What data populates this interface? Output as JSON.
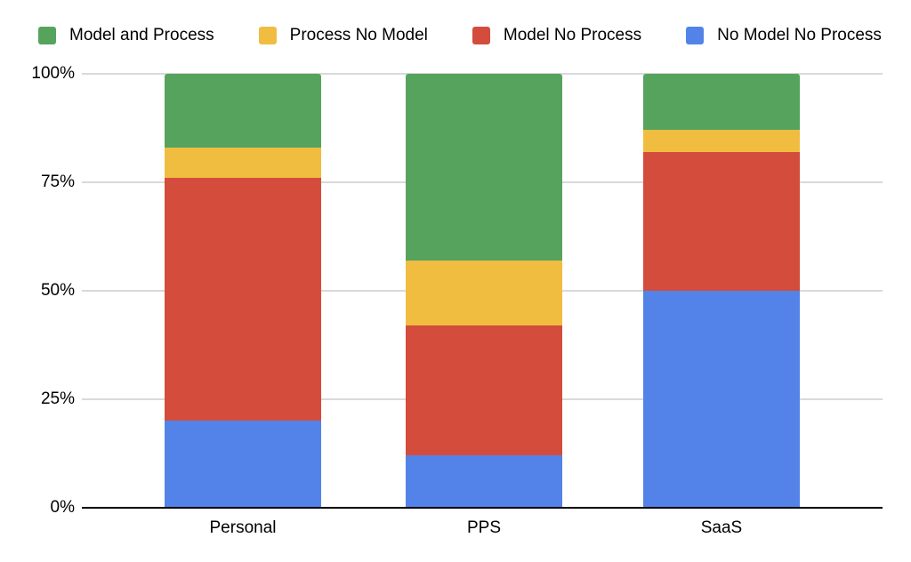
{
  "chart_data": {
    "type": "bar",
    "variant": "stacked-100-percent",
    "title": "",
    "categories": [
      "Personal",
      "PPS",
      "SaaS"
    ],
    "series": [
      {
        "name": "Model and Process",
        "color": "#56a35e",
        "values": [
          17,
          43,
          13
        ]
      },
      {
        "name": "Process No Model",
        "color": "#f0bd41",
        "values": [
          7,
          15,
          5
        ]
      },
      {
        "name": "Model No Process",
        "color": "#d44c3c",
        "values": [
          56,
          30,
          32
        ]
      },
      {
        "name": "No Model No Process",
        "color": "#5383e8",
        "values": [
          20,
          12,
          50
        ]
      }
    ],
    "unit": "%",
    "ylim": [
      0,
      100
    ],
    "yticks": [
      {
        "value": 100,
        "label": "100%"
      },
      {
        "value": 75,
        "label": "75%"
      },
      {
        "value": 50,
        "label": "50%"
      },
      {
        "value": 25,
        "label": "25%"
      },
      {
        "value": 0,
        "label": "0%"
      }
    ],
    "grid": true,
    "legend_position": "top",
    "gridline_color": "#d9d9d9",
    "axis_color": "#000000",
    "text_color": "#000000"
  }
}
